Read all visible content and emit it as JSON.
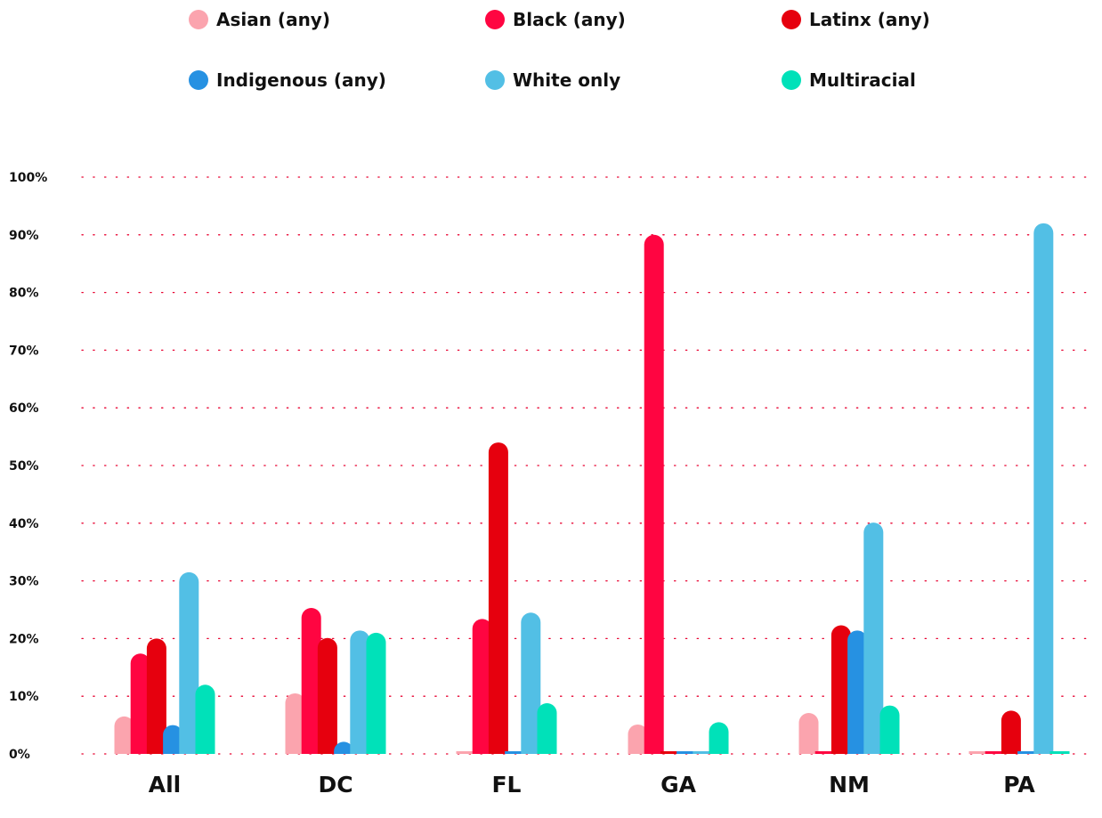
{
  "chart_data": {
    "type": "bar",
    "title": "",
    "xlabel": "",
    "ylabel": "",
    "categories": [
      "All",
      "DC",
      "FL",
      "GA",
      "NM",
      "PA"
    ],
    "series": [
      {
        "name": "Asian (any)",
        "color": "#FBA4AE",
        "values": [
          6.5,
          10.5,
          0.2,
          5.1,
          7.1,
          0.2
        ]
      },
      {
        "name": "Black (any)",
        "color": "#FF0541",
        "values": [
          17.4,
          25.3,
          23.4,
          90.0,
          0.2,
          0.2
        ]
      },
      {
        "name": "Latinx (any)",
        "color": "#E6000E",
        "values": [
          20.0,
          20.1,
          54.0,
          0.1,
          22.3,
          7.5
        ]
      },
      {
        "name": "Indigenous (any)",
        "color": "#2691E2",
        "values": [
          5.0,
          2.1,
          0.2,
          0.1,
          21.4,
          0.2
        ]
      },
      {
        "name": "White only",
        "color": "#52BFE5",
        "values": [
          31.5,
          21.4,
          24.5,
          0.1,
          40.1,
          92.0
        ]
      },
      {
        "name": "Multiracial",
        "color": "#00E1B9",
        "values": [
          12.0,
          21.0,
          8.8,
          5.5,
          8.4,
          0.2
        ]
      }
    ],
    "ylim": [
      0,
      100
    ],
    "yticks": [
      0,
      10,
      20,
      30,
      40,
      50,
      60,
      70,
      80,
      90,
      100
    ],
    "ytick_labels": [
      "0%",
      "10%",
      "20%",
      "30%",
      "40%",
      "50%",
      "60%",
      "70%",
      "80%",
      "90%",
      "100%"
    ],
    "grid": true,
    "grid_color": "#E8002F",
    "legend_position": "top"
  }
}
